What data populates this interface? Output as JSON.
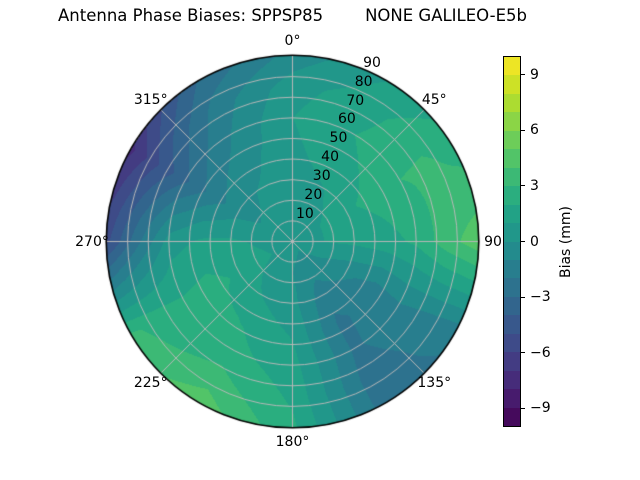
{
  "title": "Antenna Phase Biases: SPPSP85        NONE GALILEO-E5b",
  "chart_data": {
    "type": "heatmap",
    "projection": "polar",
    "title": "Antenna Phase Biases: SPPSP85        NONE GALILEO-E5b",
    "theta_ticks": [
      {
        "deg": 0,
        "label": "0°"
      },
      {
        "deg": 45,
        "label": "45°"
      },
      {
        "deg": 90,
        "label": "90"
      },
      {
        "deg": 135,
        "label": "135°"
      },
      {
        "deg": 180,
        "label": "180°"
      },
      {
        "deg": 225,
        "label": "225°"
      },
      {
        "deg": 270,
        "label": "270°"
      },
      {
        "deg": 315,
        "label": "315°"
      }
    ],
    "r_ticks": [
      {
        "value": 10,
        "label": "10"
      },
      {
        "value": 20,
        "label": "20"
      },
      {
        "value": 30,
        "label": "30"
      },
      {
        "value": 40,
        "label": "40"
      },
      {
        "value": 50,
        "label": "50"
      },
      {
        "value": 60,
        "label": "60"
      },
      {
        "value": 70,
        "label": "70"
      },
      {
        "value": 80,
        "label": "80"
      },
      {
        "value": 90,
        "label": "90"
      }
    ],
    "r_max": 90,
    "r_label_angle_deg": 22.5,
    "grid_on": true,
    "azimuth_deg": [
      0,
      30,
      60,
      90,
      120,
      150,
      180,
      210,
      240,
      270,
      300,
      330
    ],
    "radial": [
      0,
      15,
      30,
      45,
      60,
      75,
      90
    ],
    "values_mm": [
      [
        0.3,
        0.3,
        0.3,
        0.3,
        0.3,
        0.3,
        0.3,
        0.3,
        0.3,
        0.3,
        0.3,
        0.3
      ],
      [
        0.4,
        0.6,
        1.0,
        1.0,
        0.0,
        -0.6,
        0.0,
        0.4,
        1.2,
        0.8,
        0.1,
        0.2
      ],
      [
        0.6,
        1.0,
        1.8,
        1.2,
        -0.8,
        -1.6,
        0.3,
        1.0,
        1.8,
        1.2,
        -0.4,
        0.1
      ],
      [
        0.8,
        1.6,
        2.4,
        1.6,
        -1.4,
        -2.2,
        0.9,
        1.9,
        2.4,
        1.2,
        -1.6,
        -0.4
      ],
      [
        1.0,
        2.0,
        3.0,
        2.2,
        -1.0,
        -2.2,
        1.4,
        2.4,
        2.2,
        0.5,
        -3.2,
        -1.0
      ],
      [
        0.6,
        1.6,
        3.2,
        3.6,
        -1.4,
        -2.6,
        1.8,
        3.4,
        2.6,
        -2.2,
        -5.0,
        -1.6
      ],
      [
        -0.6,
        1.0,
        2.6,
        4.6,
        -1.8,
        -2.6,
        2.2,
        4.6,
        3.2,
        -5.2,
        -7.2,
        -2.8
      ]
    ],
    "vmin": -10,
    "vmax": 10,
    "level_step_mm": 1,
    "colormap": "viridis",
    "colormap_stops": [
      "#440154",
      "#482475",
      "#414487",
      "#355f8d",
      "#2a788e",
      "#21918c",
      "#22a884",
      "#44bf70",
      "#7ad151",
      "#bddf26",
      "#fde725"
    ],
    "grid_color": "#b8b8b8",
    "outline_color": "#000000",
    "colorbar": {
      "label": "Bias (mm)",
      "ticks": [
        {
          "value": 9,
          "label": "9"
        },
        {
          "value": 6,
          "label": "6"
        },
        {
          "value": 3,
          "label": "3"
        },
        {
          "value": 0,
          "label": "0"
        },
        {
          "value": -3,
          "label": "−3"
        },
        {
          "value": -6,
          "label": "−6"
        },
        {
          "value": -9,
          "label": "−9"
        }
      ]
    }
  }
}
